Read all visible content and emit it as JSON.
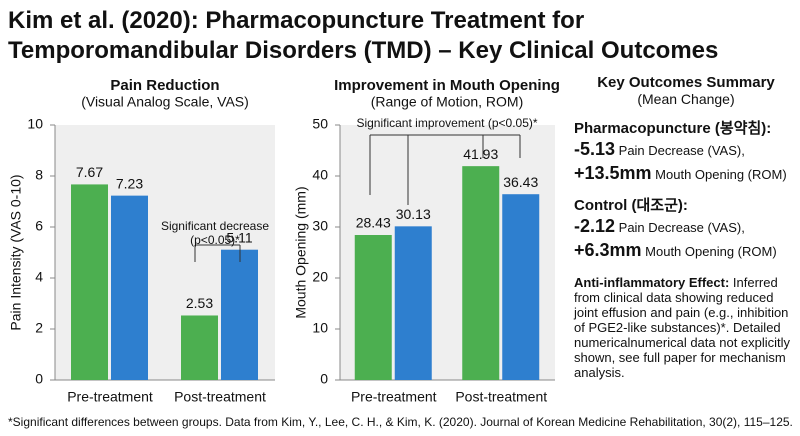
{
  "page_title": [
    "Kim et al. (2020): Pharmacopuncture Treatment for",
    "Temporomandibular Disorders (TMD) – Key Clinical Outcomes"
  ],
  "chart_data": [
    {
      "type": "bar",
      "title": "Pain Reduction",
      "subtitle": "(Visual Analog Scale, VAS)",
      "y_label": "Pain Intensity (VAS 0-10)",
      "categories": [
        "Pre-treatment",
        "Post-treatment"
      ],
      "series": [
        {
          "color": "#4caf50",
          "values": [
            7.67,
            2.53
          ]
        },
        {
          "color": "#2e7fcf",
          "values": [
            7.23,
            5.11
          ]
        }
      ],
      "ylim": [
        0,
        10
      ],
      "yticks": [
        0,
        2,
        4,
        6,
        8,
        10
      ],
      "annotation": [
        "Significant decrease",
        "(p<0.05)*"
      ]
    },
    {
      "type": "bar",
      "title": "Improvement in Mouth Opening",
      "subtitle": "(Range of Motion, ROM)",
      "y_label": "Mouth Opening (mm)",
      "categories": [
        "Pre-treatment",
        "Post-treatment"
      ],
      "series": [
        {
          "color": "#4caf50",
          "values": [
            28.43,
            41.93
          ]
        },
        {
          "color": "#2e7fcf",
          "values": [
            30.13,
            36.43
          ]
        }
      ],
      "ylim": [
        0,
        50
      ],
      "yticks": [
        0,
        10,
        20,
        30,
        40,
        50
      ],
      "annotation": [
        "Significant improvement (p<0.05)*"
      ]
    }
  ],
  "summary": {
    "title": "Key Outcomes Summary",
    "subtitle": "(Mean Change)",
    "groups": [
      {
        "heading": "Pharmacopuncture (봉약침):",
        "items": [
          {
            "value": "-5.13",
            "text": " Pain Decrease (VAS),"
          },
          {
            "value": "+13.5mm",
            "text": " Mouth Opening (ROM)"
          }
        ]
      },
      {
        "heading": "Control (대조군):",
        "items": [
          {
            "value": "-2.12",
            "text": " Pain Decrease (VAS),"
          },
          {
            "value": "+6.3mm",
            "text": " Mouth Opening (ROM)"
          }
        ]
      }
    ],
    "note_heading": "Anti-inflammatory Effect:",
    "note_text": " Inferred from clinical data showing reduced joint effusion and pain (e.g., inhibition of PGE2-like substances)*. Detailed numericalnumerical data not explicitly shown, see full paper for mechanism analysis."
  },
  "footnote": "*Significant differences between groups. Data from Kim, Y., Lee, C. H., & Kim, K. (2020). Journal of Korean Medicine Rehabilitation, 30(2), 115–125."
}
